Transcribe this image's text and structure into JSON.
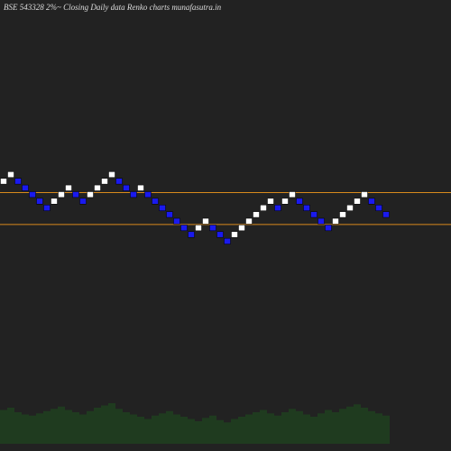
{
  "chart_data": {
    "type": "renko",
    "title": "BSE 543328 2%~ Closing Daily data Renko charts munafasutra.in",
    "values": [
      0,
      1,
      0,
      -1,
      -2,
      -3,
      -4,
      -3,
      -2,
      -1,
      -2,
      -3,
      -2,
      -1,
      0,
      1,
      0,
      -1,
      -2,
      -1,
      -2,
      -3,
      -4,
      -5,
      -6,
      -7,
      -8,
      -7,
      -6,
      -7,
      -8,
      -9,
      -8,
      -7,
      -6,
      -5,
      -4,
      -3,
      -4,
      -3,
      -2,
      -3,
      -4,
      -5,
      -6,
      -7,
      -6,
      -5,
      -4,
      -3,
      -2,
      -3,
      -4,
      -5
    ],
    "volumes": [
      30,
      32,
      28,
      26,
      25,
      27,
      29,
      31,
      33,
      30,
      28,
      26,
      29,
      32,
      34,
      36,
      31,
      28,
      26,
      24,
      22,
      25,
      27,
      29,
      26,
      24,
      22,
      20,
      23,
      25,
      21,
      19,
      22,
      24,
      26,
      28,
      30,
      27,
      25,
      28,
      31,
      29,
      26,
      24,
      27,
      30,
      28,
      31,
      33,
      35,
      32,
      29,
      27,
      25
    ],
    "up_color": "#ffffff",
    "down_color": "#1a1aee",
    "volume_color": "#1f3b1f",
    "lines": [
      -1.2,
      -6
    ],
    "line_color": "#d98a1c",
    "ylim": [
      -40,
      25
    ]
  }
}
